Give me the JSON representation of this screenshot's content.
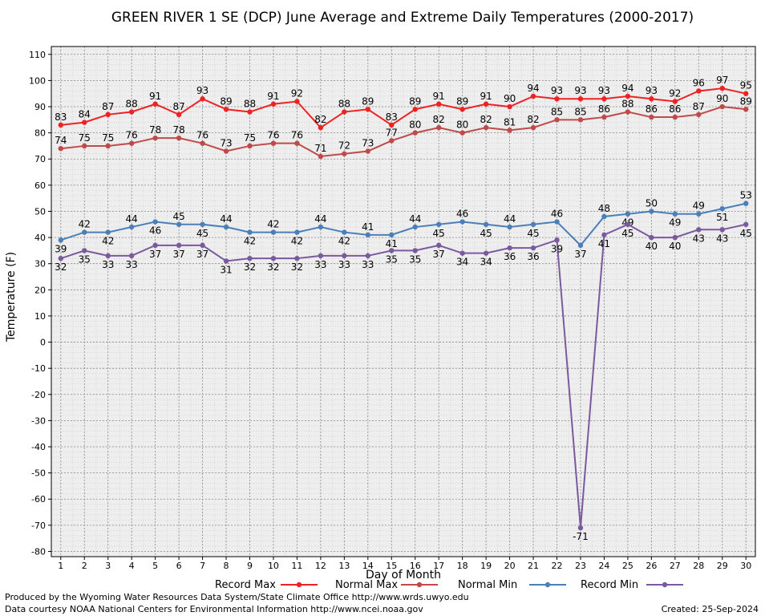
{
  "chart_data": {
    "type": "line",
    "title": "GREEN RIVER 1 SE (DCP) June Average and Extreme Daily Temperatures (2000-2017)",
    "xlabel": "Day of Month",
    "ylabel": "Temperature (F)",
    "x": [
      1,
      2,
      3,
      4,
      5,
      6,
      7,
      8,
      9,
      10,
      11,
      12,
      13,
      14,
      15,
      16,
      17,
      18,
      19,
      20,
      21,
      22,
      23,
      24,
      25,
      26,
      27,
      28,
      29,
      30
    ],
    "xlim": [
      0.6,
      30.4
    ],
    "ylim": [
      -82,
      113
    ],
    "yticks": [
      -80,
      -70,
      -60,
      -50,
      -40,
      -30,
      -20,
      -10,
      0,
      10,
      20,
      30,
      40,
      50,
      60,
      70,
      80,
      90,
      100,
      110
    ],
    "grid": true,
    "legend_position": "bottom",
    "series": [
      {
        "name": "Record Max",
        "color": "#ee2222",
        "labels": "above",
        "values": [
          83,
          84,
          87,
          88,
          91,
          87,
          93,
          89,
          88,
          91,
          92,
          82,
          88,
          89,
          83,
          89,
          91,
          89,
          91,
          90,
          94,
          93,
          93,
          93,
          94,
          93,
          92,
          96,
          97,
          95
        ]
      },
      {
        "name": "Normal Max",
        "color": "#c04a4a",
        "labels": "above",
        "values": [
          74,
          75,
          75,
          76,
          78,
          78,
          76,
          73,
          75,
          76,
          76,
          71,
          72,
          73,
          77,
          80,
          82,
          80,
          82,
          81,
          82,
          85,
          85,
          86,
          88,
          86,
          86,
          87,
          90,
          89
        ]
      },
      {
        "name": "Normal Min",
        "color": "#4a7fb8",
        "labels": "alternate",
        "values": [
          39,
          42,
          42,
          44,
          46,
          45,
          45,
          44,
          42,
          42,
          42,
          44,
          42,
          41,
          41,
          44,
          45,
          46,
          45,
          44,
          45,
          46,
          37,
          48,
          49,
          50,
          49,
          49,
          51,
          53
        ]
      },
      {
        "name": "Record Min",
        "color": "#7a5a9e",
        "labels": "below",
        "values": [
          32,
          35,
          33,
          33,
          37,
          37,
          37,
          31,
          32,
          32,
          32,
          33,
          33,
          33,
          35,
          35,
          37,
          34,
          34,
          36,
          36,
          39,
          -71,
          41,
          45,
          40,
          40,
          43,
          43,
          45
        ]
      }
    ]
  },
  "footer": {
    "produced_by": "Produced by the Wyoming Water Resources Data System/State Climate Office http://www.wrds.uwyo.edu",
    "data_courtesy": "Data courtesy NOAA National Centers for Environmental Information http://www.ncei.noaa.gov",
    "created": "Created:  25-Sep-2024"
  }
}
